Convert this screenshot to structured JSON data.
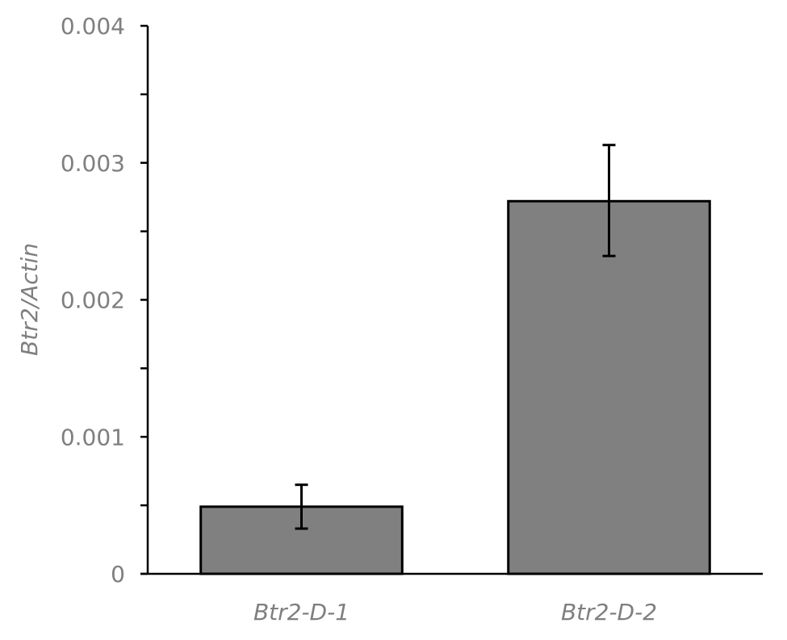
{
  "chart_data": {
    "type": "bar",
    "title": "",
    "xlabel": "",
    "ylabel": "Btr2/Actin",
    "categories": [
      "Btr2-D-1",
      "Btr2-D-2"
    ],
    "values": [
      0.00049,
      0.00272
    ],
    "error_bars": [
      {
        "low": 0.00033,
        "high": 0.00065
      },
      {
        "low": 0.00232,
        "high": 0.00313
      }
    ],
    "ylim": [
      0,
      0.004
    ],
    "yticks": [
      "0",
      "0.001",
      "0.002",
      "0.003",
      "0.004"
    ],
    "ytick_values": [
      0,
      0.001,
      0.002,
      0.003,
      0.004
    ],
    "minor_ticks": true,
    "grid": false,
    "legend": "none",
    "bar_color": "#808080",
    "bar_edge_color": "#000000",
    "label_color": "#7f7f7f"
  }
}
